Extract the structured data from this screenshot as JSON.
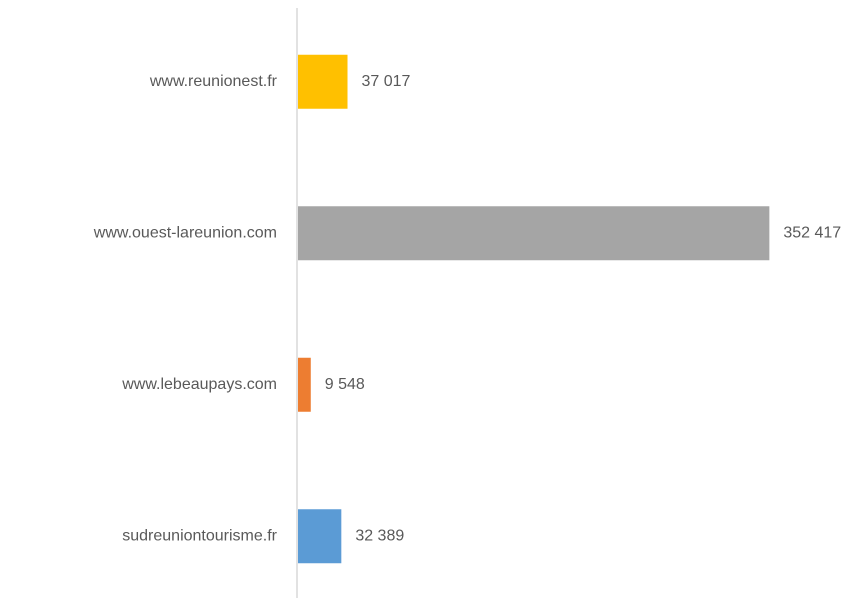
{
  "chart_data": {
    "type": "bar",
    "orientation": "horizontal",
    "categories": [
      "www.reunionest.fr",
      "www.ouest-lareunion.com",
      "www.lebeaupays.com",
      "sudreuniontourisme.fr"
    ],
    "values": [
      37017,
      352417,
      9548,
      32389
    ],
    "value_labels": [
      "37 017",
      "352 417",
      "9 548",
      "32 389"
    ],
    "colors": [
      "#ffc000",
      "#a5a5a5",
      "#ed7d31",
      "#5b9bd5"
    ],
    "xlim": [
      0,
      400000
    ]
  }
}
